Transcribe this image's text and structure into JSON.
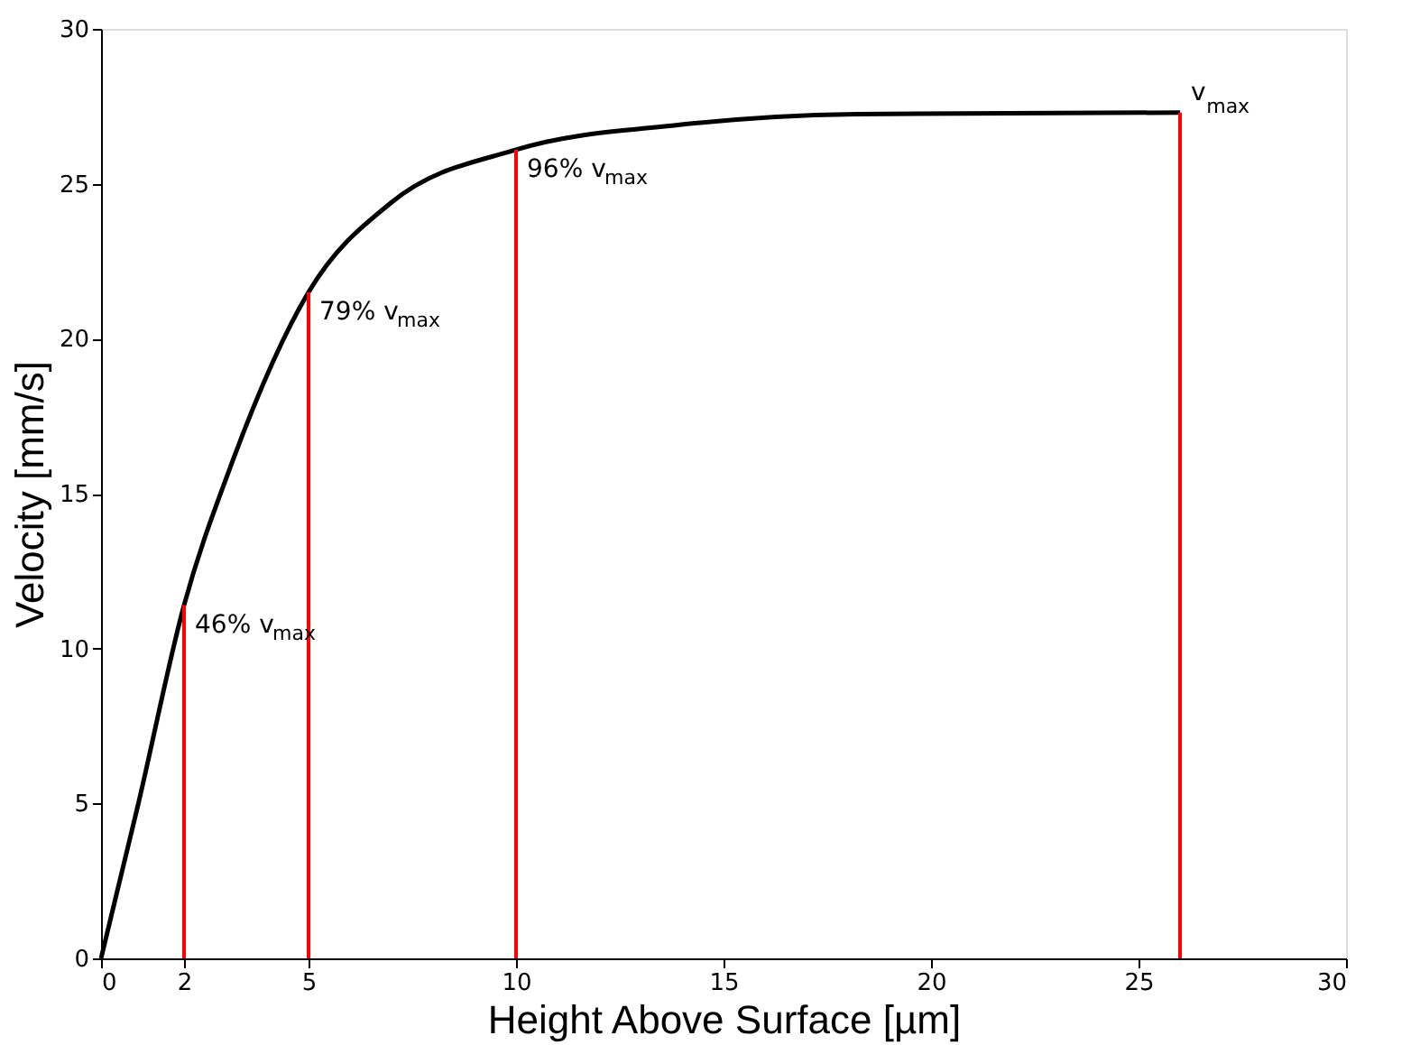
{
  "chart_data": {
    "type": "line",
    "xlabel": "Height Above Surface [µm]",
    "ylabel": "Velocity [mm/s]",
    "xlim": [
      0,
      30
    ],
    "xticks": [
      0,
      2,
      5,
      10,
      15,
      20,
      25,
      30
    ],
    "ylim": [
      0,
      30
    ],
    "yticks": [
      0,
      5,
      10,
      15,
      20,
      25,
      30
    ],
    "grid": false,
    "line_style": "solid",
    "marker": "none",
    "series": [
      {
        "color": "#000000",
        "x": [
          0,
          0.9,
          2,
          3.1,
          5,
          7,
          10,
          13.9,
          18.2,
          26
        ],
        "values": [
          0,
          5.0,
          11.4,
          15.8,
          21.5,
          24.4,
          26.1,
          26.9,
          27.25,
          27.3
        ]
      },
      {
        "type": "bar",
        "color": "#ff0000",
        "x": [
          2,
          5,
          10,
          26
        ],
        "values": [
          11.4,
          21.5,
          26.1,
          27.3
        ]
      }
    ],
    "annotations": [
      {
        "text": "46% v$_{max}$",
        "x": 2,
        "y": 11.4
      },
      {
        "text": "79% v$_{max}$",
        "x": 5,
        "y": 21.5
      },
      {
        "text": "96% v$_{max}$",
        "x": 10,
        "y": 26.1
      },
      {
        "text": "v$_{max}$",
        "x": 26,
        "y": 27.3
      }
    ]
  }
}
